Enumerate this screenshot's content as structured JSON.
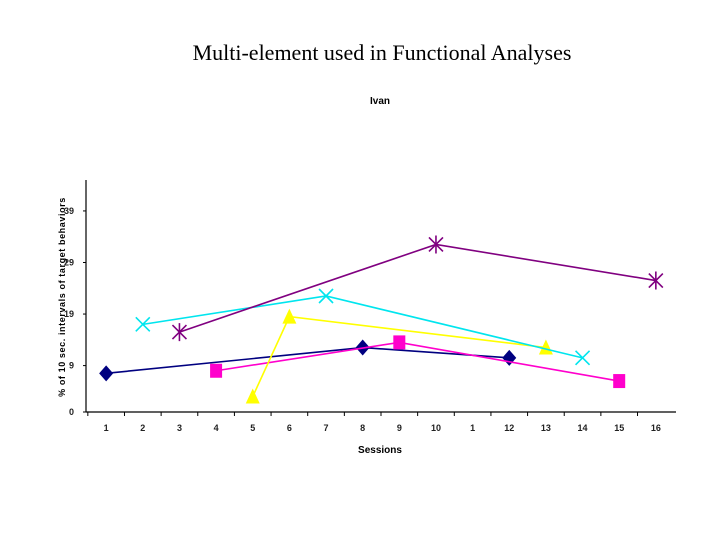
{
  "slide": {
    "title": "Multi-element used in Functional Analyses"
  },
  "chart_data": {
    "type": "line",
    "title": "Ivan",
    "xlabel": "Sessions",
    "ylabel": "% of 10 sec. intervals of target behaviors",
    "categories": [
      "1",
      "2",
      "3",
      "4",
      "5",
      "6",
      "7",
      "8",
      "9",
      "10",
      "1",
      "12",
      "13",
      "14",
      "15",
      "16"
    ],
    "yticks": [
      0,
      9,
      19,
      29,
      39
    ],
    "ylim": [
      0,
      45
    ],
    "grid": false,
    "legend": "none",
    "series": [
      {
        "marker": "diamond",
        "color": "#000080",
        "points": [
          [
            1,
            7.5
          ],
          [
            8,
            12.5
          ],
          [
            12,
            10.5
          ]
        ]
      },
      {
        "marker": "square",
        "color": "#ff00cc",
        "points": [
          [
            4,
            8
          ],
          [
            9,
            13.5
          ],
          [
            15,
            6
          ]
        ]
      },
      {
        "marker": "triangle",
        "color": "#ffff00",
        "points": [
          [
            5,
            3
          ],
          [
            6,
            18.5
          ],
          [
            13,
            12.5
          ]
        ]
      },
      {
        "marker": "x",
        "color": "#00e5ee",
        "points": [
          [
            2,
            17
          ],
          [
            7,
            22.5
          ],
          [
            14,
            10.5
          ]
        ]
      },
      {
        "marker": "star",
        "color": "#800080",
        "points": [
          [
            3,
            15.5
          ],
          [
            10,
            32.5
          ],
          [
            16,
            25.5
          ]
        ]
      }
    ]
  }
}
